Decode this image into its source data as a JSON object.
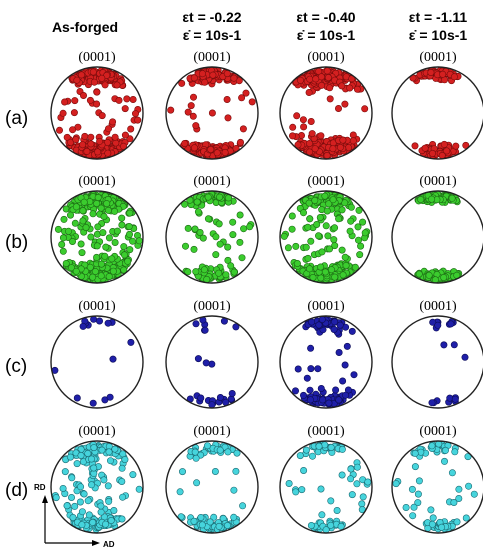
{
  "columns": [
    {
      "line1": "As-forged",
      "line2": ""
    },
    {
      "line1": "εt = -0.22",
      "line2": "ε̇ = 10s-1"
    },
    {
      "line1": "εt = -0.40",
      "line2": "ε̇ = 10s-1"
    },
    {
      "line1": "εt = -1.11",
      "line2": "ε̇ = 10s-1"
    }
  ],
  "plane_label": "(0001)",
  "rows": [
    {
      "label": "(a)",
      "color": "#d42020",
      "stroke": "#7a0c0c"
    },
    {
      "label": "(b)",
      "color": "#3bcc2e",
      "stroke": "#1c6a14"
    },
    {
      "label": "(c)",
      "color": "#1f1fa8",
      "stroke": "#0c0c55"
    },
    {
      "label": "(d)",
      "color": "#46d4dc",
      "stroke": "#1b6c74"
    }
  ],
  "axes": {
    "vertical": "RD",
    "horizontal": "AD"
  }
}
